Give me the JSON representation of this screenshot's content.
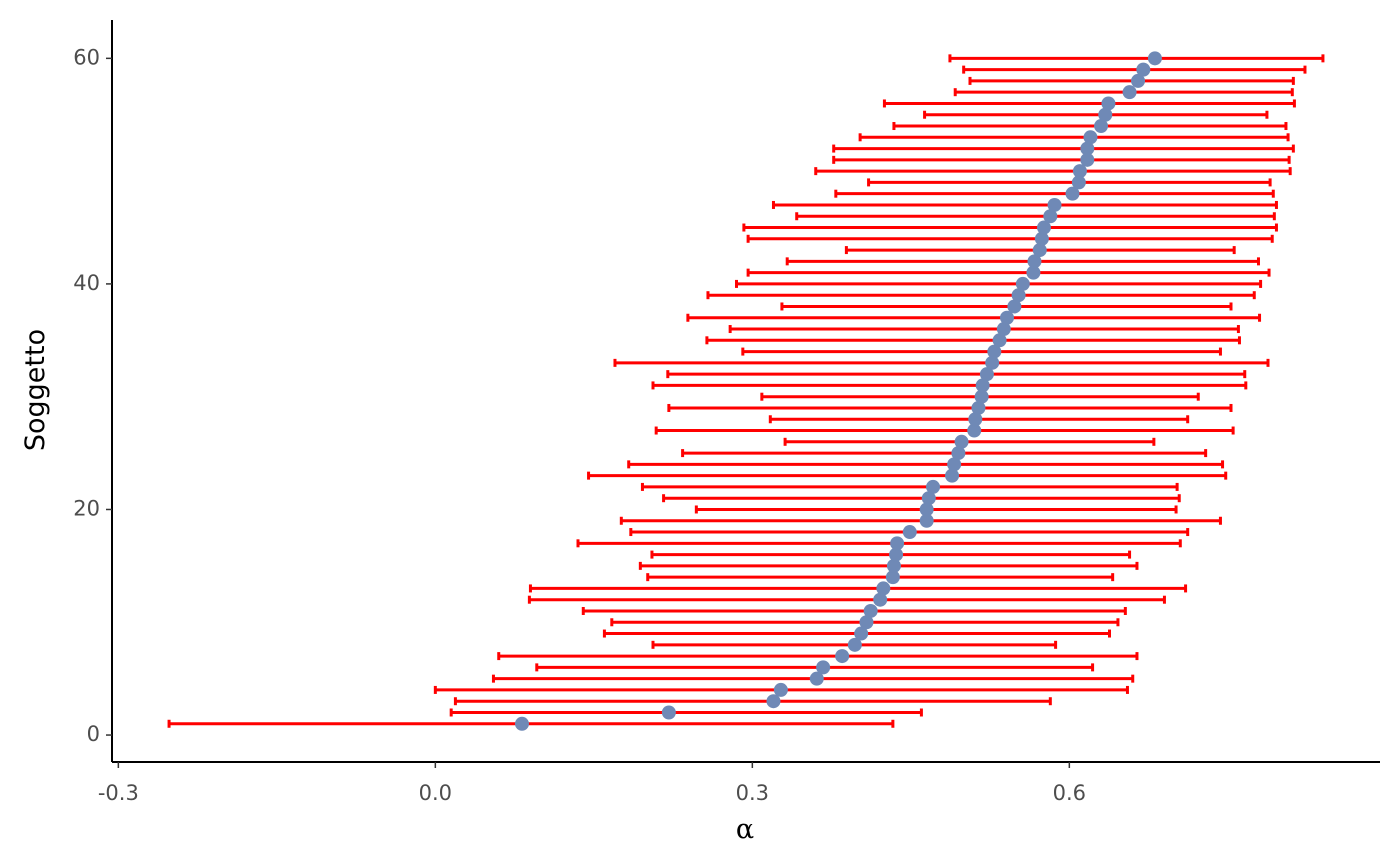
{
  "chart_data": {
    "type": "errorbar-scatter",
    "x_label": "α",
    "y_label": "Soggetto",
    "xlim": [
      -0.306,
      0.894
    ],
    "ylim": [
      -2.39,
      63.4
    ],
    "xticks": [
      -0.3,
      {
        "value": 0,
        "label": "0.0"
      },
      0.3,
      0.6
    ],
    "yticks": [
      0,
      20,
      40,
      60
    ],
    "point_color": "#6f89b6",
    "bar_color": "#ff0000",
    "y": [
      1,
      2,
      3,
      4,
      5,
      6,
      7,
      8,
      9,
      10,
      11,
      12,
      13,
      14,
      15,
      16,
      17,
      18,
      19,
      20,
      21,
      22,
      23,
      24,
      25,
      26,
      27,
      28,
      29,
      30,
      31,
      32,
      33,
      34,
      35,
      36,
      37,
      38,
      39,
      40,
      41,
      42,
      43,
      44,
      45,
      46,
      47,
      48,
      49,
      50,
      51,
      52,
      53,
      54,
      55,
      56,
      57,
      58,
      59,
      60
    ],
    "x": [
      0.082,
      0.221,
      0.32,
      0.327,
      0.361,
      0.367,
      0.385,
      0.397,
      0.403,
      0.408,
      0.412,
      0.421,
      0.424,
      0.433,
      0.434,
      0.436,
      0.437,
      0.449,
      0.465,
      0.465,
      0.467,
      0.471,
      0.489,
      0.491,
      0.495,
      0.498,
      0.51,
      0.511,
      0.514,
      0.517,
      0.518,
      0.522,
      0.527,
      0.529,
      0.534,
      0.538,
      0.541,
      0.548,
      0.552,
      0.556,
      0.566,
      0.567,
      0.572,
      0.574,
      0.576,
      0.582,
      0.586,
      0.603,
      0.609,
      0.61,
      0.617,
      0.617,
      0.62,
      0.63,
      0.634,
      0.637,
      0.657,
      0.665,
      0.67,
      0.681
    ],
    "lower": [
      -0.252,
      0.015,
      0.019,
      0.0,
      0.055,
      0.096,
      0.06,
      0.206,
      0.16,
      0.167,
      0.14,
      0.089,
      0.09,
      0.201,
      0.194,
      0.205,
      0.135,
      0.185,
      0.176,
      0.247,
      0.216,
      0.196,
      0.145,
      0.183,
      0.234,
      0.331,
      0.209,
      0.317,
      0.221,
      0.309,
      0.206,
      0.22,
      0.17,
      0.291,
      0.257,
      0.279,
      0.239,
      0.328,
      0.258,
      0.285,
      0.296,
      0.333,
      0.389,
      0.296,
      0.292,
      0.342,
      0.32,
      0.379,
      0.41,
      0.36,
      0.377,
      0.377,
      0.402,
      0.434,
      0.463,
      0.425,
      0.492,
      0.506,
      0.5,
      0.487
    ],
    "upper": [
      0.433,
      0.46,
      0.582,
      0.655,
      0.66,
      0.622,
      0.664,
      0.587,
      0.638,
      0.646,
      0.653,
      0.69,
      0.71,
      0.641,
      0.664,
      0.657,
      0.705,
      0.712,
      0.743,
      0.701,
      0.704,
      0.702,
      0.748,
      0.745,
      0.729,
      0.68,
      0.755,
      0.712,
      0.753,
      0.722,
      0.767,
      0.766,
      0.788,
      0.743,
      0.761,
      0.76,
      0.78,
      0.753,
      0.775,
      0.781,
      0.789,
      0.779,
      0.756,
      0.792,
      0.796,
      0.794,
      0.796,
      0.793,
      0.79,
      0.809,
      0.808,
      0.812,
      0.807,
      0.805,
      0.787,
      0.813,
      0.811,
      0.812,
      0.823,
      0.84
    ]
  }
}
